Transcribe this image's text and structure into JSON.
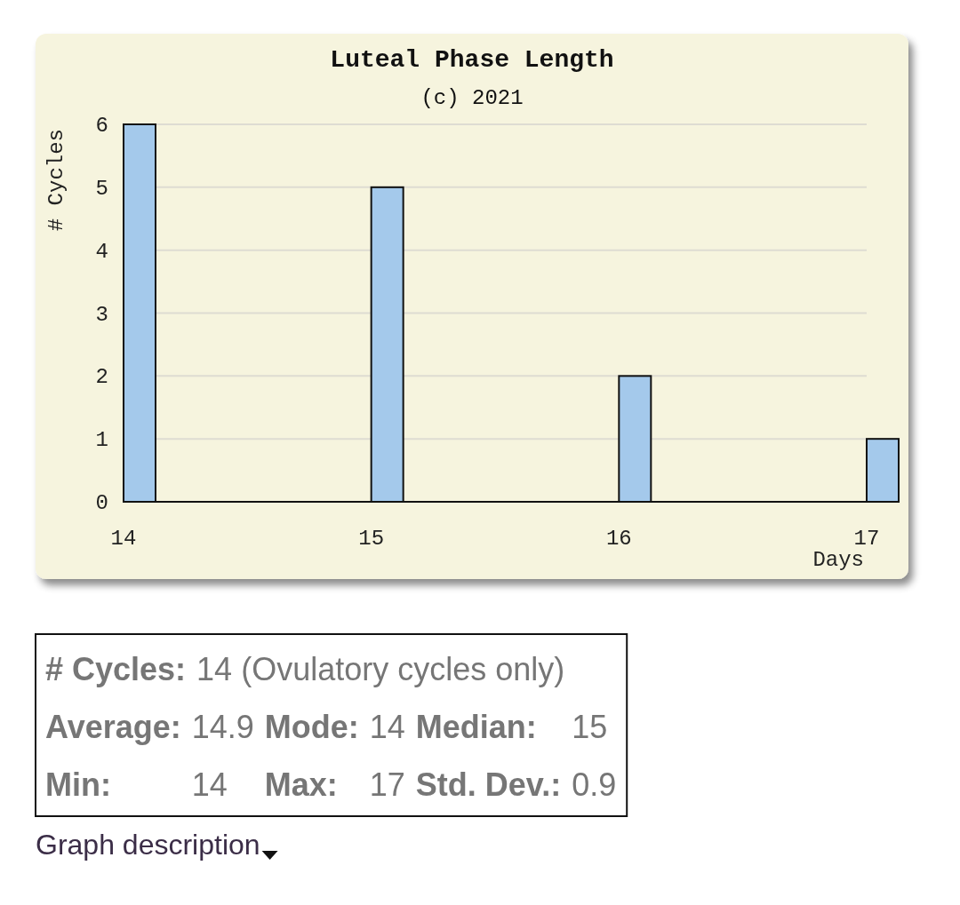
{
  "chart_data": [
    {
      "type": "bar",
      "title": "Luteal Phase Length",
      "subtitle": "(c) 2021",
      "xlabel": "Days",
      "ylabel": "# Cycles",
      "x": [
        14,
        15,
        16,
        17
      ],
      "values": [
        6,
        5,
        2,
        1
      ],
      "color": "#a4c9eb",
      "xlim": [
        14,
        17
      ],
      "xticks": [
        14,
        15,
        16,
        17
      ],
      "ylim": [
        0,
        6
      ],
      "yticks": [
        0,
        1,
        2,
        3,
        4,
        5,
        6
      ],
      "grid": "y"
    },
    {
      "type": "other",
      "annotations": [
        "# Cycles: 14 (Ovulatory cycles only)",
        "Average: 14.9 Mode: 14 Median: 15",
        "Min: 14 Max: 17 Std. Dev.: 0.9",
        "Graph description"
      ]
    }
  ]
}
